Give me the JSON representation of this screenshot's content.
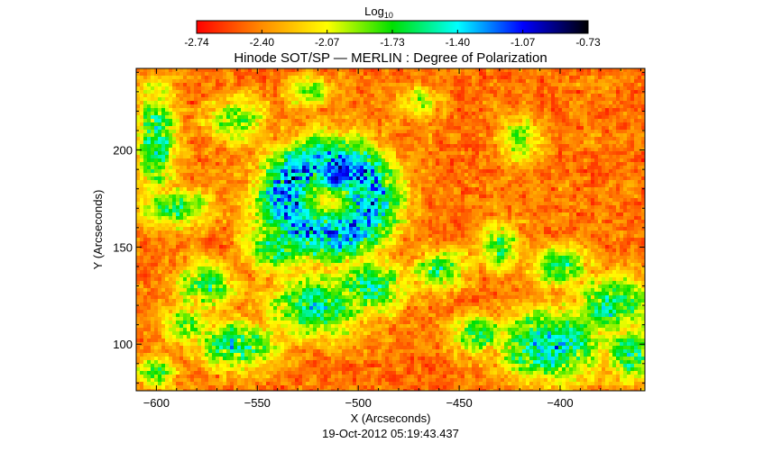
{
  "colorbar": {
    "label_main": "Log",
    "label_sub": "10",
    "ticks": [
      "-2.74",
      "-2.40",
      "-2.07",
      "-1.73",
      "-1.40",
      "-1.07",
      "-0.73"
    ],
    "range": [
      -2.74,
      -0.73
    ],
    "colormap": [
      "#ff0000",
      "#ff8c00",
      "#ffff00",
      "#00e000",
      "#00ffff",
      "#0000ff",
      "#000000"
    ]
  },
  "chart_data": {
    "type": "heatmap",
    "title": "Hinode SOT/SP — MERLIN : Degree of Polarization",
    "xlabel": "X (Arcseconds)",
    "ylabel": "Y (Arcseconds)",
    "xlim": [
      -610,
      -358
    ],
    "ylim": [
      76,
      242
    ],
    "xticks": [
      -600,
      -550,
      -500,
      -450,
      -400
    ],
    "yticks": [
      100,
      150,
      200
    ],
    "timestamp": "19-Oct-2012 05:19:43.437",
    "features": [
      {
        "kind": "sunspot-umbra",
        "x": -511,
        "y": 185,
        "value": -0.8
      },
      {
        "kind": "penumbra-ring",
        "x": -515,
        "y": 175,
        "value": -1.9
      }
    ]
  }
}
